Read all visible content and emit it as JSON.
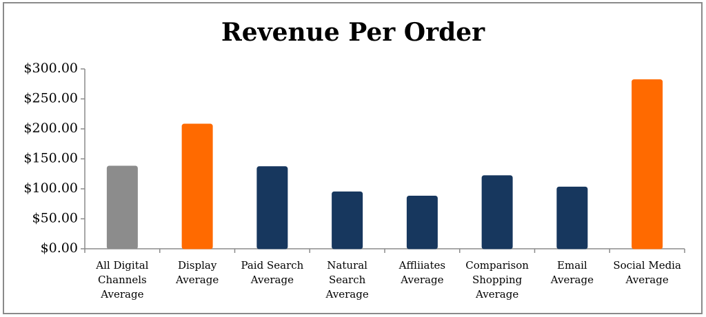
{
  "chart_data": {
    "type": "bar",
    "title": "Revenue Per Order",
    "categories": [
      "All Digital Channels Average",
      "Display Average",
      "Paid Search Average",
      "Natural Search Average",
      "Affliiates Average",
      "Comparison Shopping Average",
      "Email Average",
      "Social Media Average"
    ],
    "values": [
      138,
      208,
      137,
      95,
      88,
      122,
      103,
      282
    ],
    "colors": [
      "#8c8c8c",
      "#ff6a00",
      "#17375e",
      "#17375e",
      "#17375e",
      "#17375e",
      "#17375e",
      "#ff6a00"
    ],
    "ylim": [
      0,
      300
    ],
    "yticks": [
      {
        "value": 0,
        "label": "$0.00"
      },
      {
        "value": 50,
        "label": "$50.00"
      },
      {
        "value": 100,
        "label": "$100.00"
      },
      {
        "value": 150,
        "label": "$150.00"
      },
      {
        "value": 200,
        "label": "$200.00"
      },
      {
        "value": 250,
        "label": "$250.00"
      },
      {
        "value": 300,
        "label": "$300.00"
      }
    ],
    "grid": false
  }
}
